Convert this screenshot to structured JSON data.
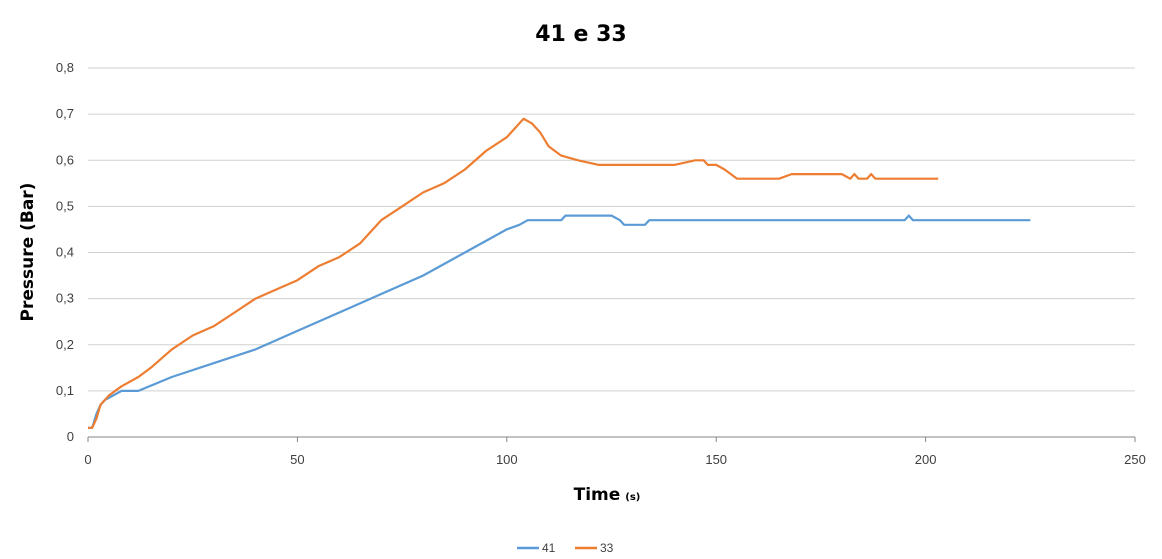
{
  "chart_data": {
    "type": "line",
    "title": "41 e 33",
    "xlabel": "Time",
    "xlabel_unit": "(s)",
    "ylabel": "Pressure (Bar)",
    "xlim": [
      0,
      250
    ],
    "ylim": [
      0,
      0.8
    ],
    "x_ticks": [
      0,
      50,
      100,
      150,
      200,
      250
    ],
    "x_tick_labels": [
      "0",
      "50",
      "100",
      "150",
      "200",
      "250"
    ],
    "y_ticks": [
      0,
      0.1,
      0.2,
      0.3,
      0.4,
      0.5,
      0.6,
      0.7,
      0.8
    ],
    "y_tick_labels": [
      "0",
      "0,1",
      "0,2",
      "0,3",
      "0,4",
      "0,5",
      "0,6",
      "0,7",
      "0,8"
    ],
    "grid": "horizontal",
    "legend_position": "bottom-center",
    "series": [
      {
        "name": "41",
        "color": "#5B9BD5",
        "points": [
          [
            0,
            0.02
          ],
          [
            1,
            0.02
          ],
          [
            2,
            0.05
          ],
          [
            3,
            0.07
          ],
          [
            4,
            0.08
          ],
          [
            6,
            0.09
          ],
          [
            8,
            0.1
          ],
          [
            12,
            0.1
          ],
          [
            20,
            0.13
          ],
          [
            30,
            0.16
          ],
          [
            40,
            0.19
          ],
          [
            50,
            0.23
          ],
          [
            60,
            0.27
          ],
          [
            70,
            0.31
          ],
          [
            80,
            0.35
          ],
          [
            90,
            0.4
          ],
          [
            100,
            0.45
          ],
          [
            103,
            0.46
          ],
          [
            105,
            0.47
          ],
          [
            113,
            0.47
          ],
          [
            114,
            0.48
          ],
          [
            125,
            0.48
          ],
          [
            127,
            0.47
          ],
          [
            128,
            0.46
          ],
          [
            133,
            0.46
          ],
          [
            134,
            0.47
          ],
          [
            150,
            0.47
          ],
          [
            195,
            0.47
          ],
          [
            196,
            0.48
          ],
          [
            197,
            0.47
          ],
          [
            225,
            0.47
          ]
        ]
      },
      {
        "name": "33",
        "color": "#ED7D31",
        "points": [
          [
            0,
            0.02
          ],
          [
            1,
            0.02
          ],
          [
            2,
            0.04
          ],
          [
            3,
            0.07
          ],
          [
            5,
            0.09
          ],
          [
            8,
            0.11
          ],
          [
            12,
            0.13
          ],
          [
            15,
            0.15
          ],
          [
            20,
            0.19
          ],
          [
            25,
            0.22
          ],
          [
            30,
            0.24
          ],
          [
            35,
            0.27
          ],
          [
            40,
            0.3
          ],
          [
            45,
            0.32
          ],
          [
            50,
            0.34
          ],
          [
            55,
            0.37
          ],
          [
            60,
            0.39
          ],
          [
            65,
            0.42
          ],
          [
            70,
            0.47
          ],
          [
            75,
            0.5
          ],
          [
            80,
            0.53
          ],
          [
            85,
            0.55
          ],
          [
            90,
            0.58
          ],
          [
            95,
            0.62
          ],
          [
            100,
            0.65
          ],
          [
            102,
            0.67
          ],
          [
            104,
            0.69
          ],
          [
            106,
            0.68
          ],
          [
            108,
            0.66
          ],
          [
            110,
            0.63
          ],
          [
            113,
            0.61
          ],
          [
            117,
            0.6
          ],
          [
            122,
            0.59
          ],
          [
            125,
            0.59
          ],
          [
            140,
            0.59
          ],
          [
            145,
            0.6
          ],
          [
            147,
            0.6
          ],
          [
            148,
            0.59
          ],
          [
            150,
            0.59
          ],
          [
            152,
            0.58
          ],
          [
            155,
            0.56
          ],
          [
            165,
            0.56
          ],
          [
            168,
            0.57
          ],
          [
            180,
            0.57
          ],
          [
            182,
            0.56
          ],
          [
            183,
            0.57
          ],
          [
            184,
            0.56
          ],
          [
            186,
            0.56
          ],
          [
            187,
            0.57
          ],
          [
            188,
            0.56
          ],
          [
            203,
            0.56
          ]
        ]
      }
    ]
  }
}
